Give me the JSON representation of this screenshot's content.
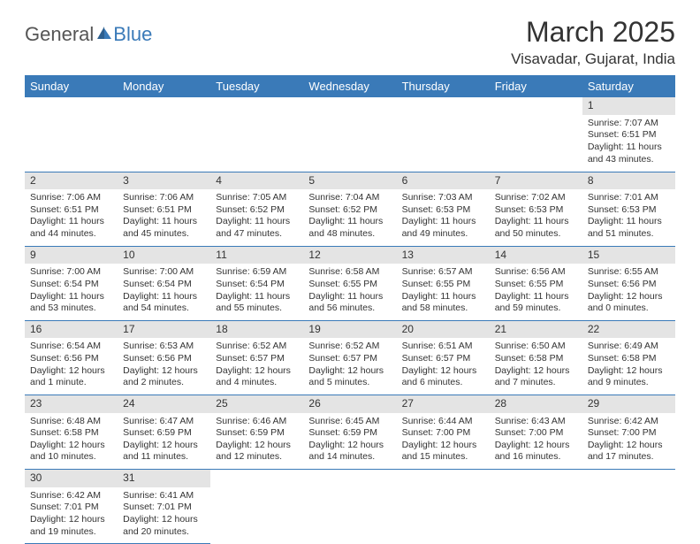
{
  "logo": {
    "part1": "General",
    "part2": "Blue"
  },
  "title": "March 2025",
  "location": "Visavadar, Gujarat, India",
  "colors": {
    "accent": "#3a7ab8",
    "daybar": "#e4e4e4",
    "text": "#333333",
    "bg": "#ffffff"
  },
  "dayHeaders": [
    "Sunday",
    "Monday",
    "Tuesday",
    "Wednesday",
    "Thursday",
    "Friday",
    "Saturday"
  ],
  "weeks": [
    [
      null,
      null,
      null,
      null,
      null,
      null,
      {
        "n": "1",
        "sr": "Sunrise: 7:07 AM",
        "ss": "Sunset: 6:51 PM",
        "dl": "Daylight: 11 hours and 43 minutes."
      }
    ],
    [
      {
        "n": "2",
        "sr": "Sunrise: 7:06 AM",
        "ss": "Sunset: 6:51 PM",
        "dl": "Daylight: 11 hours and 44 minutes."
      },
      {
        "n": "3",
        "sr": "Sunrise: 7:06 AM",
        "ss": "Sunset: 6:51 PM",
        "dl": "Daylight: 11 hours and 45 minutes."
      },
      {
        "n": "4",
        "sr": "Sunrise: 7:05 AM",
        "ss": "Sunset: 6:52 PM",
        "dl": "Daylight: 11 hours and 47 minutes."
      },
      {
        "n": "5",
        "sr": "Sunrise: 7:04 AM",
        "ss": "Sunset: 6:52 PM",
        "dl": "Daylight: 11 hours and 48 minutes."
      },
      {
        "n": "6",
        "sr": "Sunrise: 7:03 AM",
        "ss": "Sunset: 6:53 PM",
        "dl": "Daylight: 11 hours and 49 minutes."
      },
      {
        "n": "7",
        "sr": "Sunrise: 7:02 AM",
        "ss": "Sunset: 6:53 PM",
        "dl": "Daylight: 11 hours and 50 minutes."
      },
      {
        "n": "8",
        "sr": "Sunrise: 7:01 AM",
        "ss": "Sunset: 6:53 PM",
        "dl": "Daylight: 11 hours and 51 minutes."
      }
    ],
    [
      {
        "n": "9",
        "sr": "Sunrise: 7:00 AM",
        "ss": "Sunset: 6:54 PM",
        "dl": "Daylight: 11 hours and 53 minutes."
      },
      {
        "n": "10",
        "sr": "Sunrise: 7:00 AM",
        "ss": "Sunset: 6:54 PM",
        "dl": "Daylight: 11 hours and 54 minutes."
      },
      {
        "n": "11",
        "sr": "Sunrise: 6:59 AM",
        "ss": "Sunset: 6:54 PM",
        "dl": "Daylight: 11 hours and 55 minutes."
      },
      {
        "n": "12",
        "sr": "Sunrise: 6:58 AM",
        "ss": "Sunset: 6:55 PM",
        "dl": "Daylight: 11 hours and 56 minutes."
      },
      {
        "n": "13",
        "sr": "Sunrise: 6:57 AM",
        "ss": "Sunset: 6:55 PM",
        "dl": "Daylight: 11 hours and 58 minutes."
      },
      {
        "n": "14",
        "sr": "Sunrise: 6:56 AM",
        "ss": "Sunset: 6:55 PM",
        "dl": "Daylight: 11 hours and 59 minutes."
      },
      {
        "n": "15",
        "sr": "Sunrise: 6:55 AM",
        "ss": "Sunset: 6:56 PM",
        "dl": "Daylight: 12 hours and 0 minutes."
      }
    ],
    [
      {
        "n": "16",
        "sr": "Sunrise: 6:54 AM",
        "ss": "Sunset: 6:56 PM",
        "dl": "Daylight: 12 hours and 1 minute."
      },
      {
        "n": "17",
        "sr": "Sunrise: 6:53 AM",
        "ss": "Sunset: 6:56 PM",
        "dl": "Daylight: 12 hours and 2 minutes."
      },
      {
        "n": "18",
        "sr": "Sunrise: 6:52 AM",
        "ss": "Sunset: 6:57 PM",
        "dl": "Daylight: 12 hours and 4 minutes."
      },
      {
        "n": "19",
        "sr": "Sunrise: 6:52 AM",
        "ss": "Sunset: 6:57 PM",
        "dl": "Daylight: 12 hours and 5 minutes."
      },
      {
        "n": "20",
        "sr": "Sunrise: 6:51 AM",
        "ss": "Sunset: 6:57 PM",
        "dl": "Daylight: 12 hours and 6 minutes."
      },
      {
        "n": "21",
        "sr": "Sunrise: 6:50 AM",
        "ss": "Sunset: 6:58 PM",
        "dl": "Daylight: 12 hours and 7 minutes."
      },
      {
        "n": "22",
        "sr": "Sunrise: 6:49 AM",
        "ss": "Sunset: 6:58 PM",
        "dl": "Daylight: 12 hours and 9 minutes."
      }
    ],
    [
      {
        "n": "23",
        "sr": "Sunrise: 6:48 AM",
        "ss": "Sunset: 6:58 PM",
        "dl": "Daylight: 12 hours and 10 minutes."
      },
      {
        "n": "24",
        "sr": "Sunrise: 6:47 AM",
        "ss": "Sunset: 6:59 PM",
        "dl": "Daylight: 12 hours and 11 minutes."
      },
      {
        "n": "25",
        "sr": "Sunrise: 6:46 AM",
        "ss": "Sunset: 6:59 PM",
        "dl": "Daylight: 12 hours and 12 minutes."
      },
      {
        "n": "26",
        "sr": "Sunrise: 6:45 AM",
        "ss": "Sunset: 6:59 PM",
        "dl": "Daylight: 12 hours and 14 minutes."
      },
      {
        "n": "27",
        "sr": "Sunrise: 6:44 AM",
        "ss": "Sunset: 7:00 PM",
        "dl": "Daylight: 12 hours and 15 minutes."
      },
      {
        "n": "28",
        "sr": "Sunrise: 6:43 AM",
        "ss": "Sunset: 7:00 PM",
        "dl": "Daylight: 12 hours and 16 minutes."
      },
      {
        "n": "29",
        "sr": "Sunrise: 6:42 AM",
        "ss": "Sunset: 7:00 PM",
        "dl": "Daylight: 12 hours and 17 minutes."
      }
    ],
    [
      {
        "n": "30",
        "sr": "Sunrise: 6:42 AM",
        "ss": "Sunset: 7:01 PM",
        "dl": "Daylight: 12 hours and 19 minutes."
      },
      {
        "n": "31",
        "sr": "Sunrise: 6:41 AM",
        "ss": "Sunset: 7:01 PM",
        "dl": "Daylight: 12 hours and 20 minutes."
      },
      null,
      null,
      null,
      null,
      null
    ]
  ]
}
